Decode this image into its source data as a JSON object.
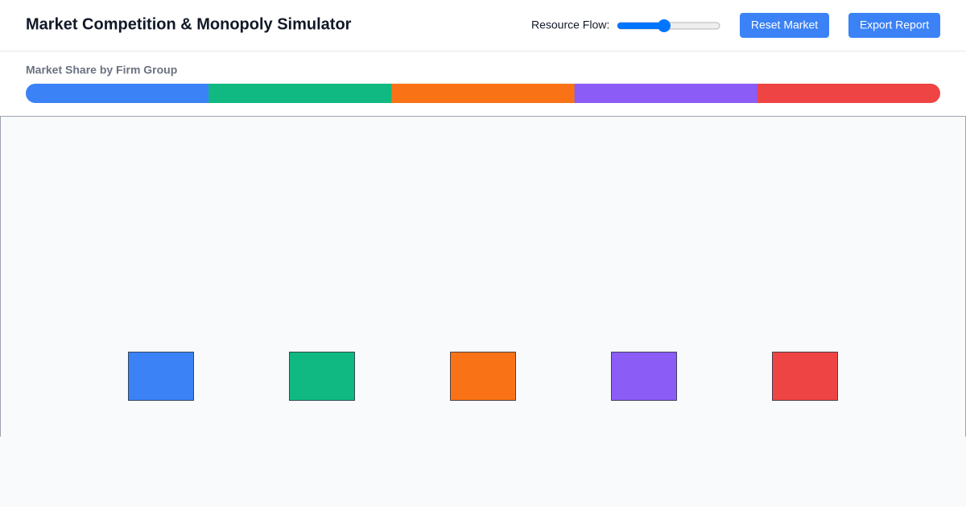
{
  "header": {
    "title": "Market Competition & Monopoly Simulator",
    "slider": {
      "label": "Resource Flow:",
      "value": 45,
      "min": 0,
      "max": 100
    },
    "buttons": [
      "Reset Market",
      "Export Report"
    ]
  },
  "market_share": {
    "title": "Market Share by Firm Group",
    "segments": [
      {
        "color": "#3b82f6",
        "value": 20
      },
      {
        "color": "#10b981",
        "value": 20
      },
      {
        "color": "#f97316",
        "value": 20
      },
      {
        "color": "#8b5cf6",
        "value": 20
      },
      {
        "color": "#ef4444",
        "value": 20
      }
    ]
  },
  "firms": [
    {
      "color": "#3b82f6"
    },
    {
      "color": "#10b981"
    },
    {
      "color": "#f97316"
    },
    {
      "color": "#8b5cf6"
    },
    {
      "color": "#ef4444"
    }
  ]
}
